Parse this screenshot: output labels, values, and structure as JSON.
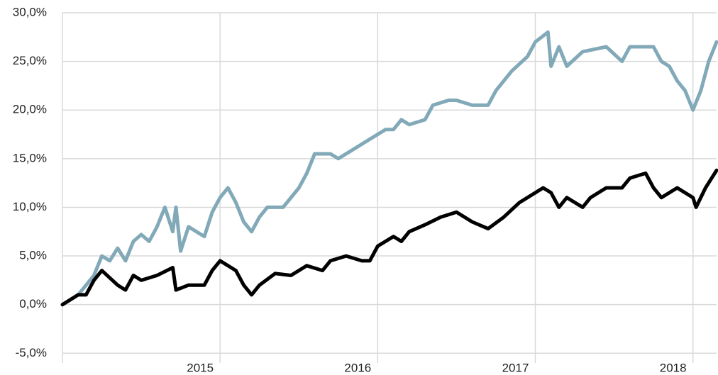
{
  "chart_data": {
    "type": "line",
    "xlim": [
      2014,
      2018.15
    ],
    "xticks": [
      2015,
      2016,
      2017,
      2018
    ],
    "ylim": [
      -6,
      30
    ],
    "yticks": [
      {
        "value": -5,
        "label": "-5,0%"
      },
      {
        "value": 0,
        "label": "0,0%"
      },
      {
        "value": 5,
        "label": "5,0%"
      },
      {
        "value": 10,
        "label": "10,0%"
      },
      {
        "value": 15,
        "label": "15,0%"
      },
      {
        "value": 20,
        "label": "20,0%"
      },
      {
        "value": 25,
        "label": "25,0%"
      },
      {
        "value": 30,
        "label": "30,0%"
      }
    ],
    "grid": true,
    "series": [
      {
        "color": "#82a9b8",
        "x": [
          2014.0,
          2014.1,
          2014.2,
          2014.25,
          2014.3,
          2014.35,
          2014.4,
          2014.45,
          2014.5,
          2014.55,
          2014.6,
          2014.65,
          2014.7,
          2014.72,
          2014.75,
          2014.8,
          2014.85,
          2014.9,
          2014.95,
          2015.0,
          2015.05,
          2015.1,
          2015.15,
          2015.2,
          2015.25,
          2015.3,
          2015.4,
          2015.5,
          2015.55,
          2015.6,
          2015.7,
          2015.75,
          2015.85,
          2015.95,
          2016.05,
          2016.1,
          2016.15,
          2016.2,
          2016.3,
          2016.35,
          2016.45,
          2016.5,
          2016.6,
          2016.7,
          2016.75,
          2016.85,
          2016.95,
          2017.0,
          2017.08,
          2017.1,
          2017.15,
          2017.2,
          2017.3,
          2017.45,
          2017.55,
          2017.6,
          2017.75,
          2017.8,
          2017.85,
          2017.9,
          2017.95,
          2018.0,
          2018.05,
          2018.1,
          2018.15
        ],
        "values": [
          0,
          1,
          3,
          5,
          4.5,
          5.8,
          4.5,
          6.5,
          7.2,
          6.5,
          8,
          10,
          7.5,
          10,
          5.5,
          8,
          7.5,
          7,
          9.5,
          11,
          12,
          10.5,
          8.5,
          7.5,
          9,
          10,
          10,
          12,
          13.5,
          15.5,
          15.5,
          15,
          16,
          17,
          18,
          18,
          19,
          18.5,
          19,
          20.5,
          21,
          21,
          20.5,
          20.5,
          22,
          24,
          25.5,
          27,
          28,
          24.5,
          26.5,
          24.5,
          26,
          26.5,
          25,
          26.5,
          26.5,
          25,
          24.5,
          23,
          22,
          20,
          22,
          25,
          27
        ]
      },
      {
        "color": "#000000",
        "x": [
          2014.0,
          2014.1,
          2014.15,
          2014.2,
          2014.25,
          2014.35,
          2014.4,
          2014.45,
          2014.5,
          2014.6,
          2014.7,
          2014.72,
          2014.8,
          2014.9,
          2014.95,
          2015.0,
          2015.05,
          2015.1,
          2015.15,
          2015.2,
          2015.25,
          2015.35,
          2015.45,
          2015.55,
          2015.65,
          2015.7,
          2015.8,
          2015.9,
          2015.95,
          2016.0,
          2016.1,
          2016.15,
          2016.2,
          2016.3,
          2016.4,
          2016.5,
          2016.6,
          2016.7,
          2016.8,
          2016.9,
          2017.0,
          2017.05,
          2017.1,
          2017.15,
          2017.2,
          2017.3,
          2017.35,
          2017.45,
          2017.55,
          2017.6,
          2017.7,
          2017.75,
          2017.8,
          2017.9,
          2018.0,
          2018.02,
          2018.08,
          2018.15
        ],
        "values": [
          0,
          1,
          1,
          2.5,
          3.5,
          2,
          1.5,
          3,
          2.5,
          3,
          3.8,
          1.5,
          2,
          2,
          3.5,
          4.5,
          4,
          3.5,
          2,
          1,
          2,
          3.2,
          3,
          4,
          3.5,
          4.5,
          5,
          4.5,
          4.5,
          6,
          7,
          6.5,
          7.5,
          8.2,
          9,
          9.5,
          8.5,
          7.8,
          9,
          10.5,
          11.5,
          12,
          11.5,
          10,
          11,
          10,
          11,
          12,
          12,
          13,
          13.5,
          12,
          11,
          12,
          11,
          10,
          12,
          13.8
        ]
      }
    ]
  }
}
